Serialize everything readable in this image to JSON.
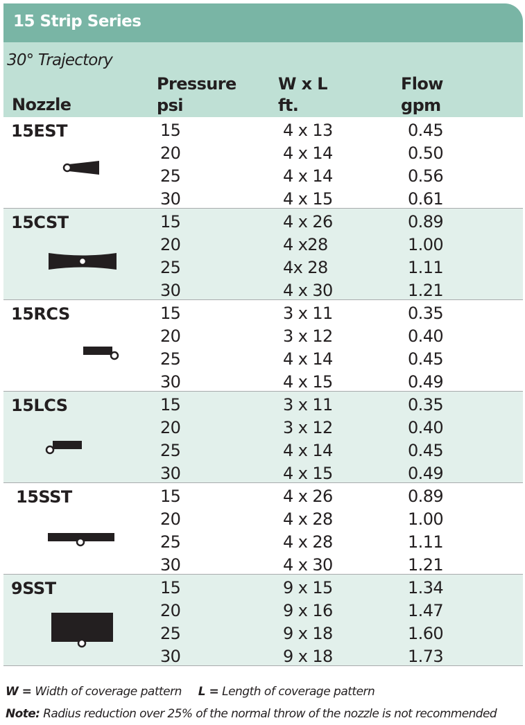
{
  "title": "15 Strip Series",
  "trajectory": "30° Trajectory",
  "columns": {
    "nozzle": "Nozzle",
    "pressure": "Pressure",
    "pressure_unit": "psi",
    "wxl": "W x L",
    "wxl_unit": "ft.",
    "flow": "Flow",
    "flow_unit": "gpm"
  },
  "groups": [
    {
      "name": "15EST",
      "pattern_icon": "end-strip-pattern-icon",
      "rows": [
        {
          "psi": "15",
          "wxl": "4 x 13",
          "gpm": "0.45"
        },
        {
          "psi": "20",
          "wxl": "4 x 14",
          "gpm": "0.50"
        },
        {
          "psi": "25",
          "wxl": "4 x 14",
          "gpm": "0.56"
        },
        {
          "psi": "30",
          "wxl": "4 x 15",
          "gpm": "0.61"
        }
      ]
    },
    {
      "name": "15CST",
      "pattern_icon": "center-strip-pattern-icon",
      "rows": [
        {
          "psi": "15",
          "wxl": "4 x 26",
          "gpm": "0.89"
        },
        {
          "psi": "20",
          "wxl": "4 x28",
          "gpm": "1.00"
        },
        {
          "psi": "25",
          "wxl": "4x 28",
          "gpm": "1.11"
        },
        {
          "psi": "30",
          "wxl": "4 x 30",
          "gpm": "1.21"
        }
      ]
    },
    {
      "name": "15RCS",
      "pattern_icon": "right-corner-strip-pattern-icon",
      "rows": [
        {
          "psi": "15",
          "wxl": "3 x 11",
          "gpm": "0.35"
        },
        {
          "psi": "20",
          "wxl": "3 x 12",
          "gpm": "0.40"
        },
        {
          "psi": "25",
          "wxl": "4 x 14",
          "gpm": "0.45"
        },
        {
          "psi": "30",
          "wxl": "4 x 15",
          "gpm": "0.49"
        }
      ]
    },
    {
      "name": "15LCS",
      "pattern_icon": "left-corner-strip-pattern-icon",
      "rows": [
        {
          "psi": "15",
          "wxl": "3 x 11",
          "gpm": "0.35"
        },
        {
          "psi": "20",
          "wxl": "3 x 12",
          "gpm": "0.40"
        },
        {
          "psi": "25",
          "wxl": "4 x 14",
          "gpm": "0.45"
        },
        {
          "psi": "30",
          "wxl": "4 x 15",
          "gpm": "0.49"
        }
      ]
    },
    {
      "name": "15SST",
      "pattern_icon": "side-strip-pattern-icon",
      "rows": [
        {
          "psi": "15",
          "wxl": "4 x 26",
          "gpm": "0.89"
        },
        {
          "psi": "20",
          "wxl": "4 x 28",
          "gpm": "1.00"
        },
        {
          "psi": "25",
          "wxl": "4 x 28",
          "gpm": "1.11"
        },
        {
          "psi": "30",
          "wxl": "4 x 30",
          "gpm": "1.21"
        }
      ]
    },
    {
      "name": "9SST",
      "pattern_icon": "wide-side-strip-pattern-icon",
      "rows": [
        {
          "psi": "15",
          "wxl": "9 x 15",
          "gpm": "1.34"
        },
        {
          "psi": "20",
          "wxl": "9 x 16",
          "gpm": "1.47"
        },
        {
          "psi": "25",
          "wxl": "9 x 18",
          "gpm": "1.60"
        },
        {
          "psi": "30",
          "wxl": "9 x 18",
          "gpm": "1.73"
        }
      ]
    }
  ],
  "footnotes": {
    "w_key": "W =",
    "w_text": "Width of coverage pattern",
    "l_key": "L =",
    "l_text": "Length of coverage pattern",
    "note_key": "Note:",
    "note_text": "Radius reduction over 25% of the normal throw of the nozzle is not recommended"
  },
  "colors": {
    "title_bar": "#79b5a5",
    "header_band": "#bfe0d5",
    "shaded_row": "#e2f0eb"
  }
}
